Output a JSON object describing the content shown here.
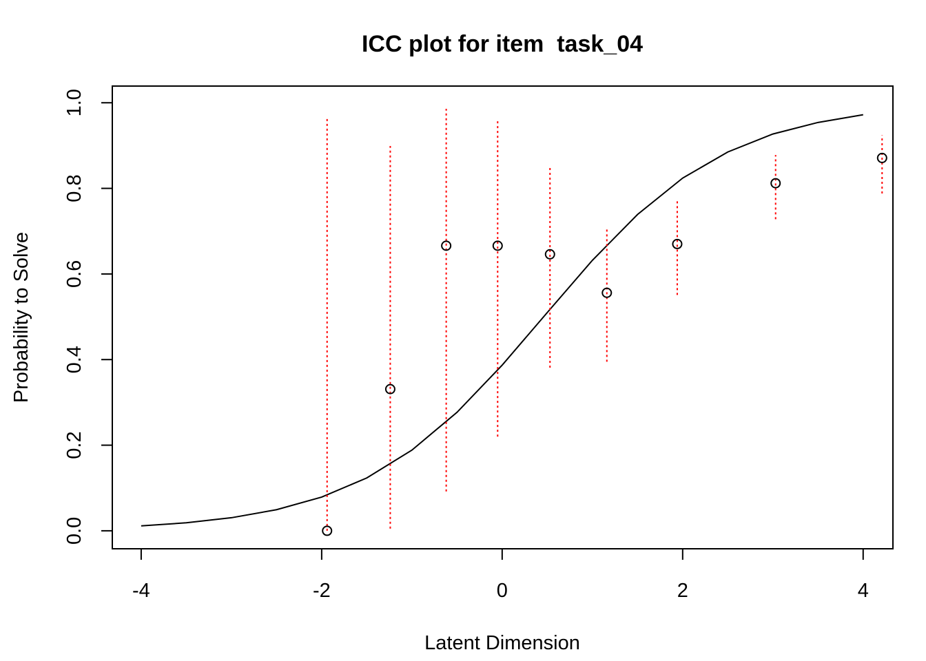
{
  "chart_data": {
    "type": "line",
    "title": "ICC plot for item  task_04",
    "x_label": "Latent Dimension",
    "y_label": "Probability to Solve",
    "xlim": [
      -4.32,
      4.33
    ],
    "ylim": [
      -0.042,
      1.039
    ],
    "xticks": [
      -4,
      -2,
      0,
      2,
      4
    ],
    "yticks": [
      {
        "value": 0,
        "label": "0.0"
      },
      {
        "value": 0.2,
        "label": "0.2"
      },
      {
        "value": 0.4,
        "label": "0.4"
      },
      {
        "value": 0.6,
        "label": "0.6"
      },
      {
        "value": 0.8,
        "label": "0.8"
      },
      {
        "value": 1,
        "label": "1.0"
      }
    ],
    "grid": false,
    "series": [
      {
        "type": "line",
        "color": "#000000",
        "x": [
          -4,
          -3.5,
          -3,
          -2.5,
          -2,
          -1.5,
          -1,
          -0.5,
          0,
          0.5,
          1,
          1.5,
          2,
          2.5,
          3,
          3.5,
          4
        ],
        "values": [
          0.0114,
          0.0187,
          0.0305,
          0.0493,
          0.0787,
          0.1235,
          0.1885,
          0.2769,
          0.387,
          0.51,
          0.632,
          0.739,
          0.824,
          0.885,
          0.927,
          0.954,
          0.972
        ]
      },
      {
        "type": "scatter",
        "color": "#000000",
        "error_color": "#ff0000",
        "x": [
          -1.94,
          -1.24,
          -0.62,
          -0.05,
          0.53,
          1.16,
          1.94,
          3.03,
          4.21
        ],
        "values": [
          0,
          0.331,
          0.666,
          0.666,
          0.646,
          0.556,
          0.67,
          0.812,
          0.871
        ],
        "lower": [
          0,
          0.005,
          0.092,
          0.22,
          0.381,
          0.395,
          0.551,
          0.728,
          0.788
        ],
        "upper": [
          0.966,
          0.899,
          0.986,
          0.957,
          0.85,
          0.709,
          0.775,
          0.878,
          0.924
        ]
      }
    ]
  }
}
